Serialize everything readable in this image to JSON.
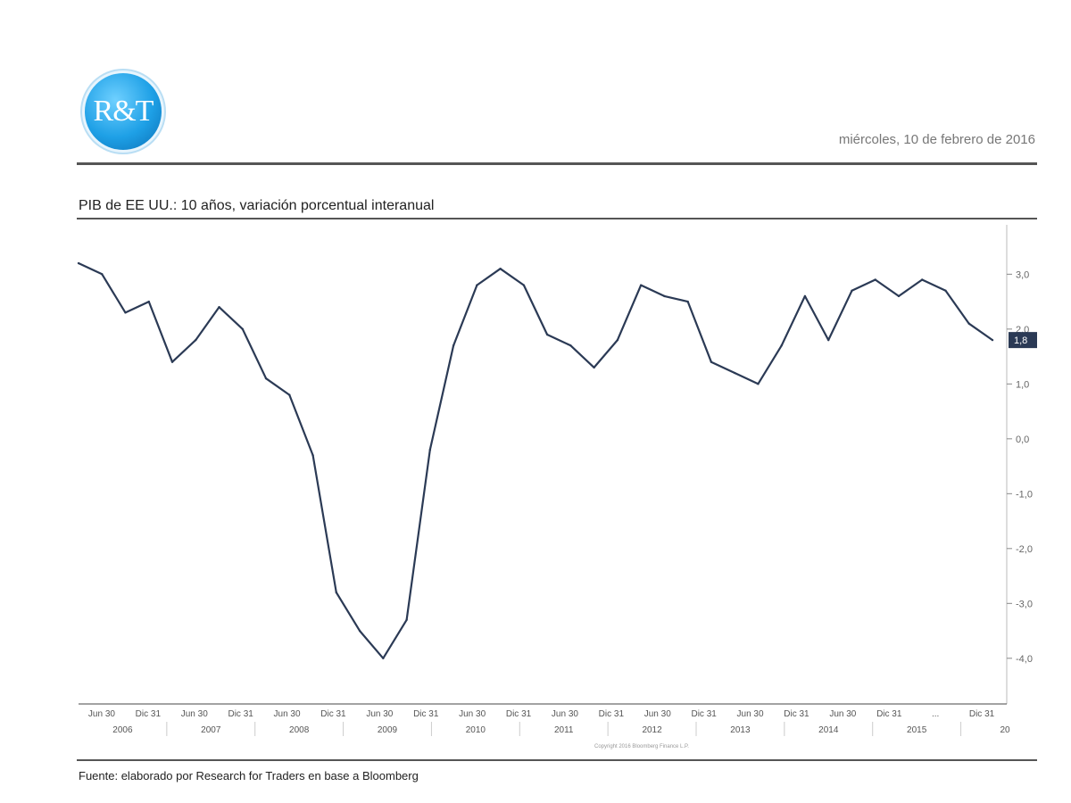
{
  "header": {
    "logo_text": "R&T",
    "date": "miércoles, 10 de febrero de 2016"
  },
  "footer": {
    "note_left": "",
    "note_center": "Copyright 2016 Bloomberg Finance L.P.",
    "note_right": "",
    "source": "Fuente: elaborado por Research for Traders en base a Bloomberg"
  },
  "colors": {
    "line": "#2b3a55",
    "axis_label_bg": "#2b3a55",
    "rule": "#555555",
    "logo": "#1ea0e6"
  },
  "chart_data": {
    "type": "line",
    "title": "PIB de EE UU.: 10 años, variación porcentual interanual",
    "xlabel": "",
    "ylabel": "",
    "ylim": [
      -4.8,
      3.9
    ],
    "y_ticks": [
      3.0,
      2.0,
      1.0,
      0.0,
      -1.0,
      -2.0,
      -3.0,
      -4.0
    ],
    "y_tick_labels": [
      "3,0",
      "2,0",
      "1,0",
      "0,0",
      "-1,0",
      "-2,0",
      "-3,0",
      "-4,0"
    ],
    "last_value_label": "1,8",
    "last_value": 1.8,
    "grid": false,
    "y_axis_side": "right",
    "x_tick_labels": [
      "Jun 30",
      "Dic 31",
      "Jun 30",
      "Dic 31",
      "Jun 30",
      "Dic 31",
      "Jun 30",
      "Dic 31",
      "Jun 30",
      "Dic 31",
      "Jun 30",
      "Dic 31",
      "Jun 30",
      "Dic 31",
      "Jun 30",
      "Dic 31",
      "Jun 30",
      "Dic 31",
      "...",
      "Dic 31"
    ],
    "year_labels": [
      "2006",
      "2007",
      "2008",
      "2009",
      "2010",
      "2011",
      "2012",
      "2013",
      "2014",
      "2015",
      "20"
    ],
    "series": [
      {
        "name": "",
        "x": [
          "2006 Q1",
          "2006 Q2",
          "2006 Q3",
          "2006 Q4",
          "2007 Q1",
          "2007 Q2",
          "2007 Q3",
          "2007 Q4",
          "2008 Q1",
          "2008 Q2",
          "2008 Q3",
          "2008 Q4",
          "2009 Q1",
          "2009 Q2",
          "2009 Q3",
          "2009 Q4",
          "2010 Q1",
          "2010 Q2",
          "2010 Q3",
          "2010 Q4",
          "2011 Q1",
          "2011 Q2",
          "2011 Q3",
          "2011 Q4",
          "2012 Q1",
          "2012 Q2",
          "2012 Q3",
          "2012 Q4",
          "2013 Q1",
          "2013 Q2",
          "2013 Q3",
          "2013 Q4",
          "2014 Q1",
          "2014 Q2",
          "2014 Q3",
          "2014 Q4",
          "2015 Q1",
          "2015 Q2",
          "2015 Q3",
          "2015 Q4"
        ],
        "values": [
          3.2,
          3.0,
          2.3,
          2.5,
          1.4,
          1.8,
          2.4,
          2.0,
          1.1,
          0.8,
          -0.3,
          -2.8,
          -3.5,
          -4.0,
          -3.3,
          -0.2,
          1.7,
          2.8,
          3.1,
          2.8,
          1.9,
          1.7,
          1.3,
          1.8,
          2.8,
          2.6,
          2.5,
          1.4,
          1.2,
          1.0,
          1.7,
          2.6,
          1.8,
          2.7,
          2.9,
          2.6,
          2.9,
          2.7,
          2.1,
          1.8
        ]
      }
    ]
  }
}
